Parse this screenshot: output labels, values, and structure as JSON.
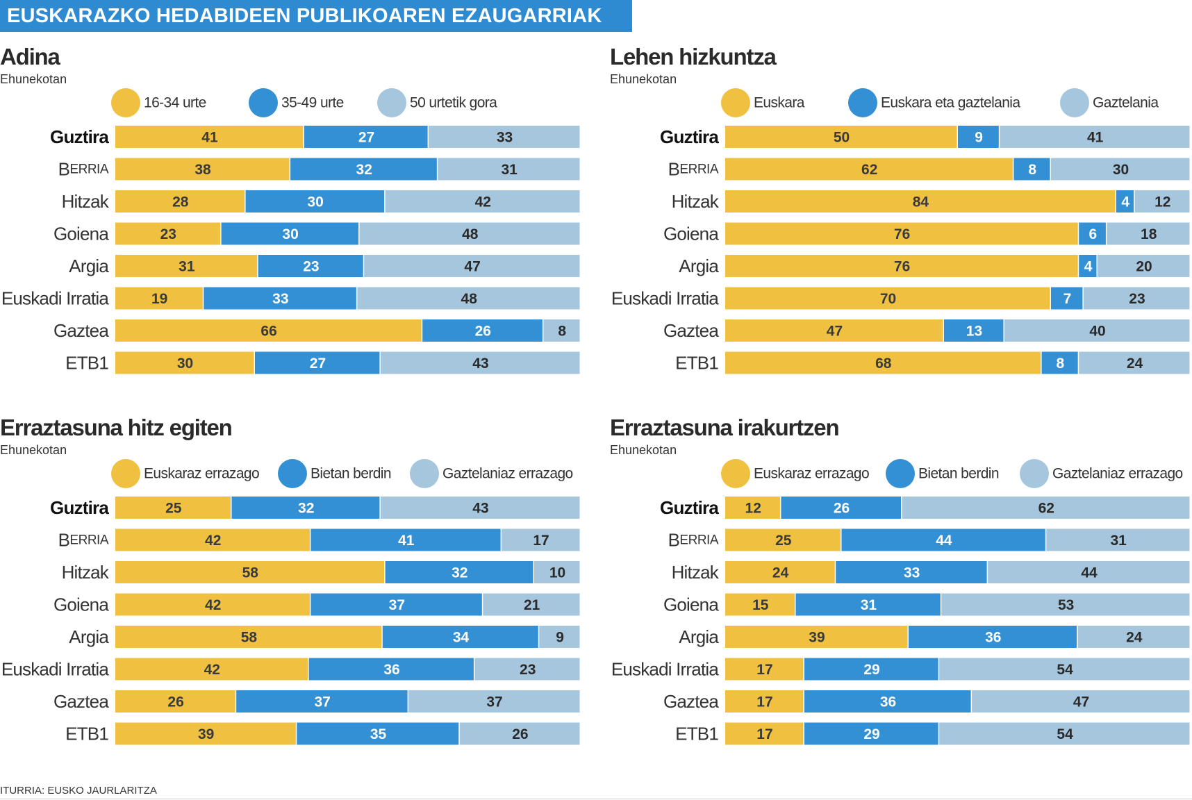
{
  "header": {
    "title": "EUSKARAZKO HEDABIDEEN PUBLIKOAREN EZAUGARRIAK"
  },
  "colors": {
    "series1": "#f0c040",
    "series2": "#3490d4",
    "series3": "#a5c6dd",
    "header_bg": "#2e8bd2"
  },
  "source": "ITURRIA: EUSKO JAURLARITZA",
  "chart_data": [
    {
      "type": "bar",
      "stacked": true,
      "orientation": "horizontal",
      "title": "Adina",
      "subtitle": "Ehunekotan",
      "categories": [
        "Guztira",
        "BERRIA",
        "Hitzak",
        "Goiena",
        "Argia",
        "Euskadi Irratia",
        "Gaztea",
        "ETB1"
      ],
      "series": [
        {
          "name": "16-34 urte",
          "values": [
            41,
            38,
            28,
            23,
            31,
            19,
            66,
            30
          ]
        },
        {
          "name": "35-49 urte",
          "values": [
            27,
            32,
            30,
            30,
            23,
            33,
            26,
            27
          ]
        },
        {
          "name": "50 urtetik gora",
          "values": [
            33,
            31,
            42,
            48,
            47,
            48,
            8,
            43
          ]
        }
      ]
    },
    {
      "type": "bar",
      "stacked": true,
      "orientation": "horizontal",
      "title": "Lehen hizkuntza",
      "subtitle": "Ehunekotan",
      "categories": [
        "Guztira",
        "BERRIA",
        "Hitzak",
        "Goiena",
        "Argia",
        "Euskadi Irratia",
        "Gaztea",
        "ETB1"
      ],
      "series": [
        {
          "name": "Euskara",
          "values": [
            50,
            62,
            84,
            76,
            76,
            70,
            47,
            68
          ]
        },
        {
          "name": "Euskara eta gaztelania",
          "values": [
            9,
            8,
            4,
            6,
            4,
            7,
            13,
            8
          ]
        },
        {
          "name": "Gaztelania",
          "values": [
            41,
            30,
            12,
            18,
            20,
            23,
            40,
            24
          ]
        }
      ]
    },
    {
      "type": "bar",
      "stacked": true,
      "orientation": "horizontal",
      "title": "Erraztasuna hitz egiten",
      "subtitle": "Ehunekotan",
      "categories": [
        "Guztira",
        "BERRIA",
        "Hitzak",
        "Goiena",
        "Argia",
        "Euskadi Irratia",
        "Gaztea",
        "ETB1"
      ],
      "series": [
        {
          "name": "Euskaraz errazago",
          "values": [
            25,
            42,
            58,
            42,
            58,
            42,
            26,
            39
          ]
        },
        {
          "name": "Bietan berdin",
          "values": [
            32,
            41,
            32,
            37,
            34,
            36,
            37,
            35
          ]
        },
        {
          "name": "Gaztelaniaz errazago",
          "values": [
            43,
            17,
            10,
            21,
            9,
            23,
            37,
            26
          ]
        }
      ]
    },
    {
      "type": "bar",
      "stacked": true,
      "orientation": "horizontal",
      "title": "Erraztasuna irakurtzen",
      "subtitle": "Ehunekotan",
      "categories": [
        "Guztira",
        "BERRIA",
        "Hitzak",
        "Goiena",
        "Argia",
        "Euskadi Irratia",
        "Gaztea",
        "ETB1"
      ],
      "series": [
        {
          "name": "Euskaraz errazago",
          "values": [
            12,
            25,
            24,
            15,
            39,
            17,
            17,
            17
          ]
        },
        {
          "name": "Bietan berdin",
          "values": [
            26,
            44,
            33,
            31,
            36,
            29,
            36,
            29
          ]
        },
        {
          "name": "Gaztelaniaz errazago",
          "values": [
            62,
            31,
            44,
            53,
            24,
            54,
            47,
            54
          ]
        }
      ]
    }
  ]
}
